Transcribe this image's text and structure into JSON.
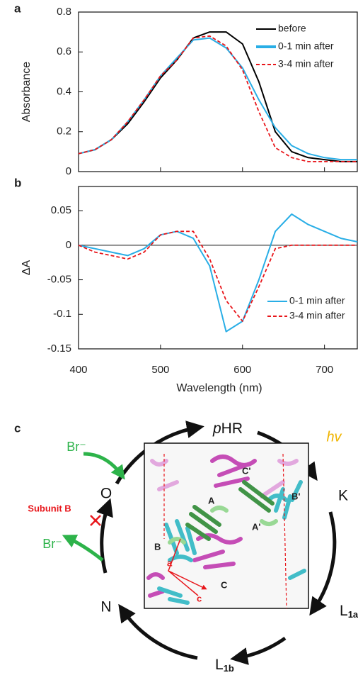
{
  "chart_data": [
    {
      "type": "line",
      "panel_label": "a",
      "y_label": "Absorbance",
      "x": [
        400,
        420,
        440,
        460,
        480,
        500,
        520,
        540,
        560,
        580,
        600,
        620,
        640,
        660,
        680,
        700,
        720,
        740
      ],
      "xlim": [
        400,
        740
      ],
      "xticks": [
        400,
        500,
        600,
        700
      ],
      "ylim": [
        0,
        0.8
      ],
      "yticks": [
        0,
        0.2,
        0.4,
        0.6,
        0.8
      ],
      "legend": "top-right",
      "series": [
        {
          "name": "before",
          "color": "#000000",
          "line_style": "solid",
          "values": [
            0.09,
            0.11,
            0.16,
            0.24,
            0.35,
            0.47,
            0.56,
            0.67,
            0.7,
            0.7,
            0.64,
            0.45,
            0.2,
            0.1,
            0.07,
            0.06,
            0.05,
            0.05
          ]
        },
        {
          "name": "0-1 min after",
          "color": "#29aee6",
          "line_style": "solid",
          "values": [
            0.09,
            0.11,
            0.16,
            0.25,
            0.36,
            0.48,
            0.57,
            0.66,
            0.67,
            0.62,
            0.52,
            0.36,
            0.22,
            0.13,
            0.09,
            0.07,
            0.06,
            0.06
          ]
        },
        {
          "name": "3-4 min after",
          "color": "#e8161b",
          "line_style": "dashed",
          "values": [
            0.09,
            0.11,
            0.16,
            0.25,
            0.36,
            0.48,
            0.56,
            0.67,
            0.68,
            0.63,
            0.51,
            0.3,
            0.12,
            0.07,
            0.05,
            0.05,
            0.05,
            0.05
          ]
        }
      ]
    },
    {
      "type": "line",
      "panel_label": "b",
      "y_label": "ΔA",
      "x_label": "Wavelength (nm)",
      "x": [
        400,
        420,
        440,
        460,
        480,
        500,
        520,
        540,
        560,
        580,
        600,
        620,
        640,
        660,
        680,
        700,
        720,
        740
      ],
      "xlim": [
        400,
        740
      ],
      "xticks": [
        400,
        500,
        600,
        700
      ],
      "ylim": [
        -0.15,
        0.085
      ],
      "yticks": [
        0.05,
        0,
        -0.05,
        -0.1,
        -0.15
      ],
      "zero_line": true,
      "legend": "bottom-right",
      "series": [
        {
          "name": "0-1 min after",
          "color": "#29aee6",
          "line_style": "solid",
          "values": [
            0,
            -0.005,
            -0.01,
            -0.015,
            -0.005,
            0.015,
            0.02,
            0.01,
            -0.03,
            -0.125,
            -0.11,
            -0.05,
            0.02,
            0.045,
            0.03,
            0.02,
            0.01,
            0.005
          ]
        },
        {
          "name": "3-4 min after",
          "color": "#e8161b",
          "line_style": "dashed",
          "values": [
            0,
            -0.01,
            -0.015,
            -0.02,
            -0.01,
            0.015,
            0.02,
            0.02,
            -0.02,
            -0.08,
            -0.11,
            -0.06,
            -0.005,
            0,
            0,
            0,
            0,
            0
          ]
        }
      ]
    }
  ],
  "diagram": {
    "panel_label": "c",
    "states": {
      "phr": {
        "italic": "p",
        "text": "HR"
      },
      "k": "K",
      "l1a": {
        "main": "L",
        "sub": "1a"
      },
      "l1b": {
        "main": "L",
        "sub": "1b"
      },
      "n": "N",
      "o": "O"
    },
    "light": "hv",
    "bromide_in": "Br⁻",
    "bromide_out": "Br⁻",
    "blocked": "Subunit B",
    "structure_labels": [
      "C'",
      "A",
      "A'",
      "B'",
      "B",
      "C",
      "a",
      "c"
    ]
  }
}
